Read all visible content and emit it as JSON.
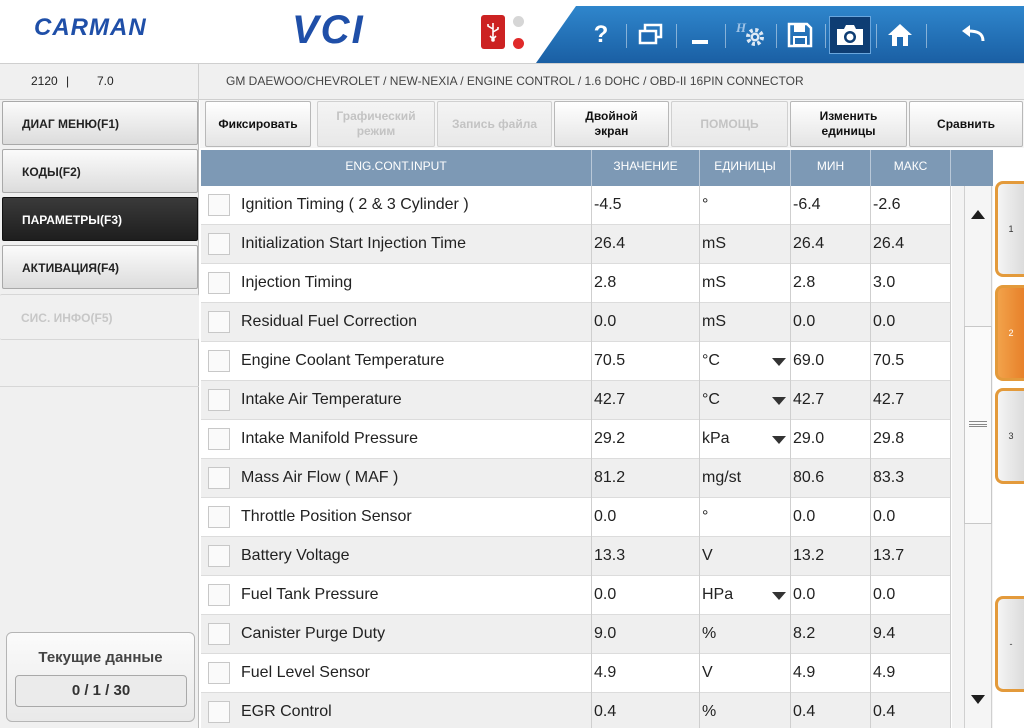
{
  "header": {
    "brand": "CARMAN",
    "product": "VCI",
    "toolbar": [
      {
        "name": "help-icon",
        "glyph": "?"
      },
      {
        "name": "window-icon",
        "glyph": "❐"
      },
      {
        "name": "minimize-icon",
        "glyph": "_"
      },
      {
        "name": "settings-icon",
        "glyph": "⚙"
      },
      {
        "name": "save-icon",
        "glyph": "💾"
      },
      {
        "name": "camera-icon",
        "glyph": "📷"
      },
      {
        "name": "home-icon",
        "glyph": "⌂"
      },
      {
        "name": "back-icon",
        "glyph": "↩"
      }
    ],
    "colors": {
      "toolbar": "#2a78c0",
      "brand": "#1f4fa8",
      "usb": "#cc2222"
    }
  },
  "infobar": {
    "code": "2120",
    "separator": "|",
    "version": "7.0",
    "breadcrumb": "GM DAEWOO/CHEVROLET / NEW-NEXIA / ENGINE CONTROL / 1.6 DOHC / OBD-II 16PIN CONNECTOR"
  },
  "nav": {
    "items": [
      {
        "label": "ДИАГ МЕНЮ(F1)",
        "state": "normal"
      },
      {
        "label": "КОДЫ(F2)",
        "state": "normal"
      },
      {
        "label": "ПАРАМЕТРЫ(F3)",
        "state": "active"
      },
      {
        "label": "АКТИВАЦИЯ(F4)",
        "state": "normal"
      },
      {
        "label": "СИС. ИНФО(F5)",
        "state": "disabled"
      }
    ],
    "current_title": "Текущие данные",
    "current_count": "0 / 1 / 30"
  },
  "actions": [
    {
      "label": "Фиксировать",
      "enabled": true
    },
    {
      "label": "Графический\nрежим",
      "enabled": false
    },
    {
      "label": "Запись файла",
      "enabled": false
    },
    {
      "label": "Двойной\nэкран",
      "enabled": true
    },
    {
      "label": "ПОМОЩЬ",
      "enabled": false
    },
    {
      "label": "Изменить\nединицы",
      "enabled": true
    },
    {
      "label": "Сравнить",
      "enabled": true
    }
  ],
  "table": {
    "headers": {
      "name": "ENG.CONT.INPUT",
      "value": "ЗНАЧЕНИЕ",
      "units": "ЕДИНИЦЫ",
      "min": "МИН",
      "max": "МАКС"
    },
    "rows": [
      {
        "name": "Ignition Timing ( 2 & 3 Cylinder )",
        "value": "-4.5",
        "units": "°",
        "dropdown": false,
        "min": "-6.4",
        "max": "-2.6"
      },
      {
        "name": "Initialization Start Injection Time",
        "value": "26.4",
        "units": "mS",
        "dropdown": false,
        "min": "26.4",
        "max": "26.4"
      },
      {
        "name": "Injection Timing",
        "value": "2.8",
        "units": "mS",
        "dropdown": false,
        "min": "2.8",
        "max": "3.0"
      },
      {
        "name": "Residual Fuel Correction",
        "value": "0.0",
        "units": "mS",
        "dropdown": false,
        "min": "0.0",
        "max": "0.0"
      },
      {
        "name": "Engine Coolant Temperature",
        "value": "70.5",
        "units": "°C",
        "dropdown": true,
        "min": "69.0",
        "max": "70.5"
      },
      {
        "name": "Intake Air Temperature",
        "value": "42.7",
        "units": "°C",
        "dropdown": true,
        "min": "42.7",
        "max": "42.7"
      },
      {
        "name": "Intake Manifold Pressure",
        "value": "29.2",
        "units": "kPa",
        "dropdown": true,
        "min": "29.0",
        "max": "29.8"
      },
      {
        "name": "Mass Air Flow ( MAF )",
        "value": "81.2",
        "units": "mg/st",
        "dropdown": false,
        "min": "80.6",
        "max": "83.3"
      },
      {
        "name": "Throttle Position Sensor",
        "value": "0.0",
        "units": "°",
        "dropdown": false,
        "min": "0.0",
        "max": "0.0"
      },
      {
        "name": "Battery Voltage",
        "value": "13.3",
        "units": "V",
        "dropdown": false,
        "min": "13.2",
        "max": "13.7"
      },
      {
        "name": "Fuel Tank Pressure",
        "value": "0.0",
        "units": "HPa",
        "dropdown": true,
        "min": "0.0",
        "max": "0.0"
      },
      {
        "name": "Canister Purge Duty",
        "value": "9.0",
        "units": "%",
        "dropdown": false,
        "min": "8.2",
        "max": "9.4"
      },
      {
        "name": "Fuel Level Sensor",
        "value": "4.9",
        "units": "V",
        "dropdown": false,
        "min": "4.9",
        "max": "4.9"
      },
      {
        "name": "EGR Control",
        "value": "0.4",
        "units": "%",
        "dropdown": false,
        "min": "0.4",
        "max": "0.4"
      }
    ]
  },
  "pages": [
    {
      "label": "1",
      "active": false
    },
    {
      "label": "2",
      "active": true
    },
    {
      "label": "3",
      "active": false
    },
    {
      "label": "-",
      "active": false
    }
  ]
}
